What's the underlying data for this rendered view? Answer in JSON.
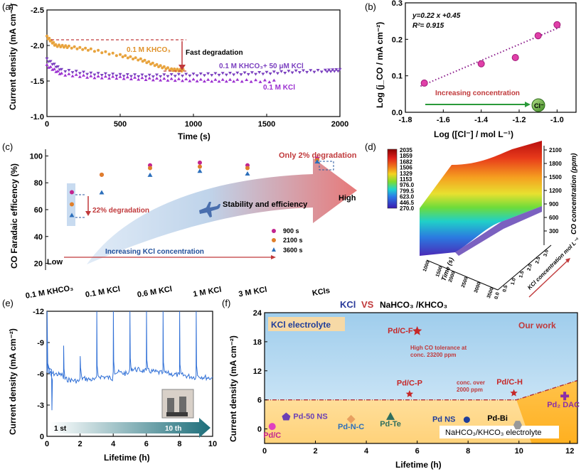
{
  "chart_data": [
    {
      "panel": "(a)",
      "type": "scatter",
      "xlabel": "Time (s)",
      "ylabel": "Current density (mA cm⁻²)",
      "xlim": [
        0,
        2000
      ],
      "ylim": [
        -2.5,
        -1.0
      ],
      "y_inverted": true,
      "xticks": [
        "0",
        "500",
        "1000",
        "1500",
        "2000"
      ],
      "yticks": [
        "-2.5",
        "-2.0",
        "-1.5",
        "-1.0"
      ],
      "series": [
        {
          "name": "0.1 M KHCO₃",
          "color": "#e8a33d",
          "x": [
            0,
            60,
            150,
            300,
            500,
            640,
            750,
            850,
            930
          ],
          "y": [
            -2.12,
            -2.0,
            -1.98,
            -1.94,
            -1.86,
            -1.8,
            -1.72,
            -1.66,
            -1.65
          ]
        },
        {
          "name": "0.1 M KHCO₃+ 50 μM KCl",
          "color": "#7a3fbf",
          "x": [
            0,
            100,
            300,
            500,
            700,
            900,
            1100,
            1300,
            1500,
            1700,
            1900,
            2000
          ],
          "y": [
            -1.8,
            -1.65,
            -1.6,
            -1.58,
            -1.57,
            -1.58,
            -1.59,
            -1.6,
            -1.61,
            -1.63,
            -1.64,
            -1.65
          ]
        },
        {
          "name": "0.1 M KCl",
          "color": "#9b2fd0",
          "x": [
            0,
            100,
            300,
            500,
            700,
            900,
            1100,
            1300,
            1550
          ],
          "y": [
            -1.72,
            -1.6,
            -1.56,
            -1.55,
            -1.53,
            -1.52,
            -1.51,
            -1.51,
            -1.5
          ]
        }
      ],
      "annotations": [
        "Fast degradation"
      ]
    },
    {
      "panel": "(b)",
      "type": "scatter",
      "xlabel": "Log ([Cl⁻] / mol L⁻¹)",
      "ylabel": "Log (j_CO / mA cm⁻²)",
      "xlim": [
        -1.8,
        -0.9
      ],
      "ylim": [
        0.0,
        0.3
      ],
      "xticks": [
        "-1.8",
        "-1.6",
        "-1.4",
        "-1.2",
        "-1.0"
      ],
      "yticks": [
        "0.0",
        "0.1",
        "0.2",
        "0.3"
      ],
      "x": [
        -1.7,
        -1.4,
        -1.22,
        -1.1,
        -1.0
      ],
      "y": [
        0.08,
        0.133,
        0.15,
        0.21,
        0.24
      ],
      "fit": {
        "equation": "y=0.22 x +0.45",
        "r2": "R²= 0.915",
        "slope": 0.22,
        "intercept": 0.45
      },
      "annotations": [
        "Increasing concentration",
        "Cl⁻"
      ]
    },
    {
      "panel": "(c)",
      "type": "scatter",
      "ylabel": "CO Faradaic efficency (%)",
      "ylim": [
        15,
        105
      ],
      "yticks": [
        "20",
        "40",
        "60",
        "80",
        "100"
      ],
      "categories": [
        "0.1 M KHCO₃",
        "0.1 M KCl",
        "0.6 M KCl",
        "1 M KCl",
        "3 M KCl",
        "KCls"
      ],
      "series": [
        {
          "name": "900 s",
          "color": "#c2248f",
          "values": [
            73,
            86,
            93,
            95,
            93,
            98
          ]
        },
        {
          "name": "2100 s",
          "color": "#e07f2a",
          "values": [
            64,
            86,
            91,
            92,
            91,
            97
          ]
        },
        {
          "name": "3600 s",
          "color": "#2c6fbb",
          "values": [
            56,
            73,
            86,
            89,
            87,
            96
          ]
        }
      ],
      "annotations": [
        "Only 2% degradation",
        "22% degradation",
        "Stability and efficiency",
        "High",
        "Low",
        "Increasing KCl concentration"
      ]
    },
    {
      "panel": "(d)",
      "type": "heatmap",
      "zlabel": "CO concentration (ppm)",
      "colorbar": [
        "2035",
        "1859",
        "1682",
        "1506",
        "1329",
        "1153",
        "976.0",
        "799.5",
        "623.0",
        "446.5",
        "270.0"
      ],
      "zticks": [
        "300",
        "600",
        "900",
        "1200",
        "1500",
        "1800",
        "2100"
      ],
      "xlabel": "Time (s)",
      "xticks": [
        "1000",
        "1500",
        "2000",
        "2500",
        "3000",
        "3500"
      ],
      "ylabel": "KCl concentration mol L⁻¹",
      "yticks": [
        "0.0",
        "0.5",
        "1.0",
        "1.5",
        "2.0",
        "2.5",
        "3.0"
      ]
    },
    {
      "panel": "(e)",
      "type": "line",
      "xlabel": "Lifetime (h)",
      "ylabel": "Current density (mA cm⁻²)",
      "xlim": [
        0,
        10
      ],
      "ylim": [
        -12,
        0
      ],
      "y_inverted": true,
      "xticks": [
        "0",
        "2",
        "4",
        "6",
        "8",
        "10"
      ],
      "yticks": [
        "-12",
        "-9",
        "-6",
        "-3",
        "0"
      ],
      "spike_times": [
        0.0,
        1.0,
        2.0,
        3.0,
        4.0,
        5.0,
        6.0,
        7.0,
        8.0,
        9.0
      ],
      "baseline": [
        -6.1,
        -5.5,
        -5.6,
        -5.8,
        -6.2,
        -6.5,
        -6.3,
        -6.1,
        -5.9,
        -5.8
      ],
      "annotations": [
        "1 st",
        "10 th"
      ]
    },
    {
      "panel": "(f)",
      "type": "scatter",
      "title_left": "KCl",
      "title_vs": "VS",
      "title_right": "NaHCO₃ /KHCO₃",
      "xlabel": "Lifetime (h)",
      "ylabel": "Current density (mA cm⁻²)",
      "xlim": [
        0,
        12.3
      ],
      "ylim": [
        -3,
        24
      ],
      "xticks": [
        "0",
        "2",
        "4",
        "6",
        "8",
        "10",
        "12"
      ],
      "yticks": [
        "0",
        "6",
        "12",
        "18",
        "24"
      ],
      "points": [
        {
          "label": "Pd/C",
          "x": 0.3,
          "y": 0.5,
          "color": "#e040c0"
        },
        {
          "label": "Pd-50 NS",
          "x": 0.85,
          "y": 2.5,
          "color": "#6a3fb5"
        },
        {
          "label": "Pd-N-C",
          "x": 3.4,
          "y": 2.0,
          "color": "#e8a060"
        },
        {
          "label": "Pd-Te",
          "x": 4.95,
          "y": 2.6,
          "color": "#2f6e5e"
        },
        {
          "label": "Pd NS",
          "x": 7.95,
          "y": 1.9,
          "color": "#1f3d9a"
        },
        {
          "label": "Pd-Bi",
          "x": 9.95,
          "y": 0.8,
          "color": "#999999"
        },
        {
          "label": "Pd₂ DAC",
          "x": 11.8,
          "y": 6.8,
          "color": "#8a2fa8"
        },
        {
          "label": "Pd/C-F",
          "x": 6.0,
          "y": 20.2,
          "color": "#c62828"
        },
        {
          "label": "Pd/C-P",
          "x": 5.7,
          "y": 7.2,
          "color": "#c62828"
        },
        {
          "label": "Pd/C-H",
          "x": 9.8,
          "y": 7.4,
          "color": "#c62828"
        }
      ],
      "annotations": [
        "KCl electrolyte",
        "Our work",
        "High CO tolerance  at conc. 23200 ppm",
        "conc. over 2000 ppm",
        "NaHCO₃/KHCO₃ electrolyte"
      ]
    }
  ]
}
